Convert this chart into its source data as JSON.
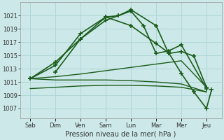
{
  "bg_color": "#cce8e8",
  "grid_color": "#aad4d4",
  "line_color": "#1a5c1a",
  "xlabel": "Pression niveau de la mer( hPa )",
  "ylim": [
    1005.5,
    1023.0
  ],
  "yticks": [
    1007,
    1009,
    1011,
    1013,
    1015,
    1017,
    1019,
    1021
  ],
  "xtick_labels": [
    "Sab",
    "Dim",
    "Ven",
    "Sam",
    "Lun",
    "Mar",
    "Mer",
    "Jeu"
  ],
  "x_positions": [
    0,
    1,
    2,
    3,
    4,
    5,
    6,
    7
  ],
  "lines": [
    {
      "x": [
        0,
        1,
        2,
        3,
        4,
        4.5,
        5,
        5.5,
        6,
        7
      ],
      "y": [
        1011.5,
        1014.0,
        1017.5,
        1020.3,
        1021.7,
        1019.5,
        1015.3,
        1015.7,
        1016.6,
        1010.0
      ],
      "marker": "+",
      "markersize": 5,
      "linewidth": 1.2,
      "linestyle": "-"
    },
    {
      "x": [
        0,
        1,
        2,
        3,
        3.5,
        4,
        5,
        5.5,
        6,
        6.5,
        7
      ],
      "y": [
        1011.5,
        1013.5,
        1018.3,
        1020.8,
        1021.0,
        1021.9,
        1019.5,
        1015.3,
        1015.6,
        1014.9,
        1010.2
      ],
      "marker": "+",
      "markersize": 5,
      "linewidth": 1.2,
      "linestyle": "-"
    },
    {
      "x": [
        0,
        1,
        2,
        3,
        4,
        5,
        6,
        7
      ],
      "y": [
        1011.5,
        1011.8,
        1012.2,
        1012.7,
        1013.2,
        1013.7,
        1014.2,
        1010.2
      ],
      "marker": null,
      "markersize": 0,
      "linewidth": 1.0,
      "linestyle": "-"
    },
    {
      "x": [
        0,
        1,
        2,
        3,
        4,
        5,
        6,
        7
      ],
      "y": [
        1011.5,
        1011.3,
        1011.3,
        1011.3,
        1011.2,
        1011.0,
        1010.7,
        1009.5
      ],
      "marker": null,
      "markersize": 0,
      "linewidth": 1.0,
      "linestyle": "-"
    },
    {
      "x": [
        0,
        1,
        2,
        3,
        4,
        5,
        6,
        7
      ],
      "y": [
        1010.0,
        1010.2,
        1010.4,
        1010.5,
        1010.5,
        1010.4,
        1010.2,
        1009.5
      ],
      "marker": null,
      "markersize": 0,
      "linewidth": 1.0,
      "linestyle": "-"
    },
    {
      "x": [
        1,
        2,
        3,
        4,
        5,
        5.5,
        6,
        6.5,
        7,
        7.2
      ],
      "y": [
        1012.5,
        1017.5,
        1020.8,
        1019.5,
        1016.8,
        1015.4,
        1012.3,
        1009.5,
        1007.0,
        1009.8
      ],
      "marker": "+",
      "markersize": 5,
      "linewidth": 1.2,
      "linestyle": "-"
    }
  ]
}
